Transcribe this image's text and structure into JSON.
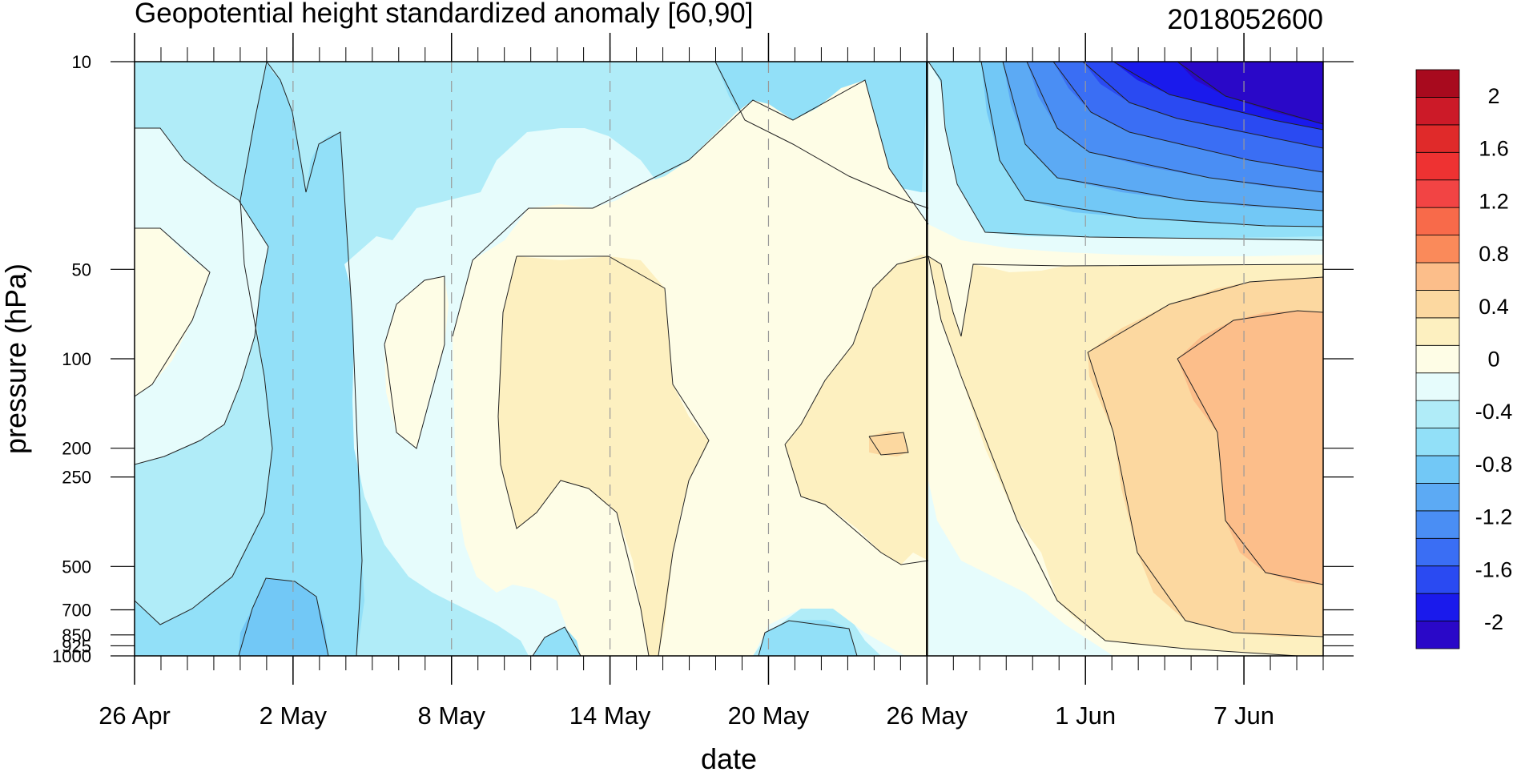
{
  "chart_data": {
    "type": "heatmap",
    "title": "Geopotential height standardized anomaly [60,90]",
    "date_label": "2018052600",
    "xlabel": "date",
    "ylabel": "pressure (hPa)",
    "x_ticks": [
      {
        "label": "26 Apr",
        "day": 0
      },
      {
        "label": "2 May",
        "day": 6
      },
      {
        "label": "8 May",
        "day": 12
      },
      {
        "label": "14 May",
        "day": 18
      },
      {
        "label": "20 May",
        "day": 24
      },
      {
        "label": "26 May",
        "day": 30
      },
      {
        "label": "1 Jun",
        "day": 36
      },
      {
        "label": "7 Jun",
        "day": 42
      }
    ],
    "x_range_days": [
      0,
      45
    ],
    "forecast_start_day": 30,
    "y_ticks": [
      {
        "label": "10",
        "p": 10
      },
      {
        "label": "50",
        "p": 50
      },
      {
        "label": "100",
        "p": 100
      },
      {
        "label": "200",
        "p": 200
      },
      {
        "label": "250",
        "p": 250
      },
      {
        "label": "500",
        "p": 500
      },
      {
        "label": "700",
        "p": 700
      },
      {
        "label": "850",
        "p": 850
      },
      {
        "label": "925",
        "p": 925
      },
      {
        "label": "1000",
        "p": 1000
      }
    ],
    "y_range_hpa": [
      10,
      1000
    ],
    "y_scale": "log",
    "y_inverted": true,
    "colorbar": {
      "levels": [
        -2.2,
        -2.0,
        -1.8,
        -1.6,
        -1.4,
        -1.2,
        -1.0,
        -0.8,
        -0.6,
        -0.4,
        -0.2,
        0.0,
        0.2,
        0.4,
        0.6,
        0.8,
        1.0,
        1.2,
        1.4,
        1.6,
        1.8,
        2.0,
        2.2
      ],
      "colors": [
        "#2a08c8",
        "#1a1aec",
        "#2a4af2",
        "#3a6ef4",
        "#4a8ef4",
        "#5caaf4",
        "#72c8f6",
        "#92e0f8",
        "#b0ecf8",
        "#e6fcfc",
        "#fefde6",
        "#fdf0c0",
        "#fcd8a0",
        "#fcbe8a",
        "#fa8a5a",
        "#f86a4a",
        "#f24444",
        "#ee3232",
        "#e02a2a",
        "#cc1a28",
        "#a80a1e"
      ],
      "label_values": [
        {
          "text": "2",
          "value": 2.0
        },
        {
          "text": "1.6",
          "value": 1.6
        },
        {
          "text": "1.2",
          "value": 1.2
        },
        {
          "text": "0.8",
          "value": 0.8
        },
        {
          "text": "0.4",
          "value": 0.4
        },
        {
          "text": "0",
          "value": 0.0
        },
        {
          "text": "-0.4",
          "value": -0.4
        },
        {
          "text": "-0.8",
          "value": -0.8
        },
        {
          "text": "-1.2",
          "value": -1.2
        },
        {
          "text": "-1.6",
          "value": -1.6
        },
        {
          "text": "-2",
          "value": -2.0
        }
      ]
    },
    "grid": false,
    "series": []
  }
}
